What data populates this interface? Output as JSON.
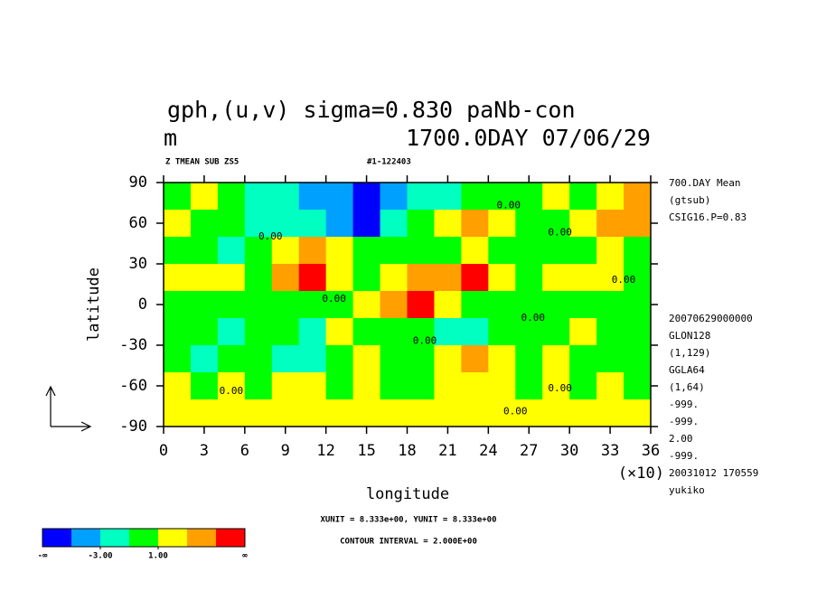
{
  "chart_data": {
    "type": "heatmap",
    "title": "gph,(u,v) sigma=0.830 paNb-con",
    "units": "m",
    "time": "1700.0DAY 07/06/29",
    "subtitle_left": "Z TMEAN SUB ZS5",
    "subtitle_right": "#1-122403",
    "x_label": "longitude",
    "x_multiplier": "(×10)",
    "y_label": "latitude",
    "xlim": [
      0,
      36
    ],
    "xticks": [
      0,
      3,
      6,
      9,
      12,
      15,
      18,
      21,
      24,
      27,
      30,
      33,
      36
    ],
    "ylim": [
      -90,
      90
    ],
    "yticks": [
      -90,
      -60,
      -30,
      0,
      30,
      60,
      90
    ],
    "field_lon": [
      1,
      3,
      5,
      7,
      9,
      11,
      13,
      15,
      17,
      19,
      21,
      23,
      25,
      27,
      29,
      31,
      33,
      35
    ],
    "field_lat": [
      80,
      60,
      40,
      20,
      0,
      -20,
      -40,
      -60,
      -80
    ],
    "field": [
      [
        0,
        1,
        0,
        -2,
        -3,
        -4,
        -5,
        -6,
        -5,
        -3,
        -2,
        -1,
        -1,
        0,
        1,
        0,
        2,
        3
      ],
      [
        1,
        0,
        -1,
        -2,
        -2,
        -3,
        -4,
        -6,
        -3,
        0,
        2,
        3,
        1,
        0,
        0,
        2,
        4,
        4
      ],
      [
        0,
        -1,
        -2,
        0,
        2,
        3,
        1,
        -1,
        0,
        -1,
        0,
        1,
        0,
        -1,
        0,
        -1,
        1,
        -1
      ],
      [
        1,
        2,
        1,
        0,
        3,
        5,
        1,
        0,
        1,
        3,
        4,
        5,
        2,
        0,
        1,
        2,
        1,
        0
      ],
      [
        0,
        0,
        0,
        0,
        0,
        0,
        0,
        1,
        3,
        6,
        2,
        0,
        0,
        0,
        0,
        0,
        0,
        0
      ],
      [
        0,
        -1,
        -2,
        -1,
        0,
        -2,
        1,
        0,
        0,
        -1,
        -2,
        -3,
        -1,
        0,
        0,
        1,
        0,
        -1
      ],
      [
        -1,
        -2,
        0,
        -1,
        -2,
        -2,
        0,
        1,
        0,
        -1,
        1,
        3,
        1,
        0,
        1,
        -1,
        0,
        0
      ],
      [
        1,
        0,
        1,
        0,
        1,
        2,
        0,
        1,
        0,
        0,
        1,
        1,
        1,
        0,
        1,
        -1,
        1,
        0
      ],
      [
        1,
        2,
        1,
        2,
        1,
        2,
        1,
        1,
        1,
        2,
        1,
        1,
        1,
        1,
        2,
        1,
        1,
        2
      ]
    ],
    "levels": [
      -5,
      -3,
      -1,
      1,
      3,
      5
    ],
    "colors": [
      "#0000ff",
      "#00a0ff",
      "#00ffc0",
      "#00ff00",
      "#ffff00",
      "#ffa000",
      "#ff0000"
    ],
    "colorbar_low": "-∞",
    "colorbar_high": "∞",
    "colorbar_ticks": [
      {
        "value": -3,
        "label": "-3.00"
      },
      {
        "value": 1,
        "label": "1.00"
      }
    ],
    "contour_labels": [
      {
        "text": "0.00",
        "x": 7.9,
        "y": 50
      },
      {
        "text": "0.00",
        "x": 25.5,
        "y": 73
      },
      {
        "text": "0.00",
        "x": 29.3,
        "y": 53
      },
      {
        "text": "0.00",
        "x": 34,
        "y": 18
      },
      {
        "text": "0.00",
        "x": 12.6,
        "y": 4
      },
      {
        "text": "0.00",
        "x": 27.3,
        "y": -10
      },
      {
        "text": "0.00",
        "x": 19.3,
        "y": -27
      },
      {
        "text": "0.00",
        "x": 5,
        "y": -64
      },
      {
        "text": "0.00",
        "x": 29.3,
        "y": -62
      },
      {
        "text": "0.00",
        "x": 26,
        "y": -79
      }
    ],
    "info_top": [
      "700.DAY Mean",
      "(gtsub)",
      "CSIG16.P=0.83"
    ],
    "info_bottom": [
      "20070629000000",
      "GLON128",
      "(1,129)",
      "GGLA64",
      "(1,64)",
      "-999.",
      "-999.",
      "2.00",
      "-999.",
      "20031012 170559",
      "yukiko"
    ],
    "unit_note": "XUNIT = 8.333e+00, YUNIT = 8.333e+00",
    "contour_note": "CONTOUR INTERVAL = 2.000E+00"
  }
}
